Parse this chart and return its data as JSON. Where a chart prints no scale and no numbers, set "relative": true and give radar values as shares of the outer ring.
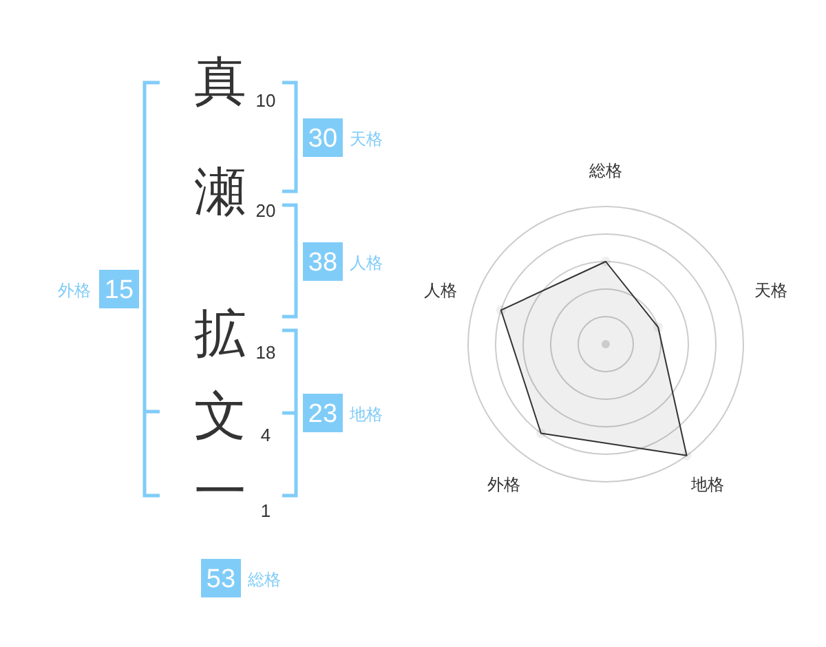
{
  "chart_data": [
    {
      "type": "other",
      "categories": [
        "真",
        "瀬",
        "拡",
        "文",
        "一"
      ],
      "values": [
        10,
        20,
        18,
        4,
        1
      ],
      "data_labels": true
    },
    {
      "type": "other",
      "categories": [
        "天格",
        "人格",
        "地格",
        "外格",
        "総格"
      ],
      "values": [
        30,
        38,
        23,
        15,
        53
      ],
      "color": "#80ccf8",
      "data_labels": true
    },
    {
      "type": "radar",
      "categories": [
        "総格",
        "天格",
        "地格",
        "外格",
        "人格"
      ],
      "relative": true,
      "series": [
        {
          "color": "#333333",
          "values": [
            0.6,
            0.4,
            1,
            0.8,
            0.8
          ]
        }
      ],
      "grid": true,
      "marker": "circle"
    }
  ]
}
